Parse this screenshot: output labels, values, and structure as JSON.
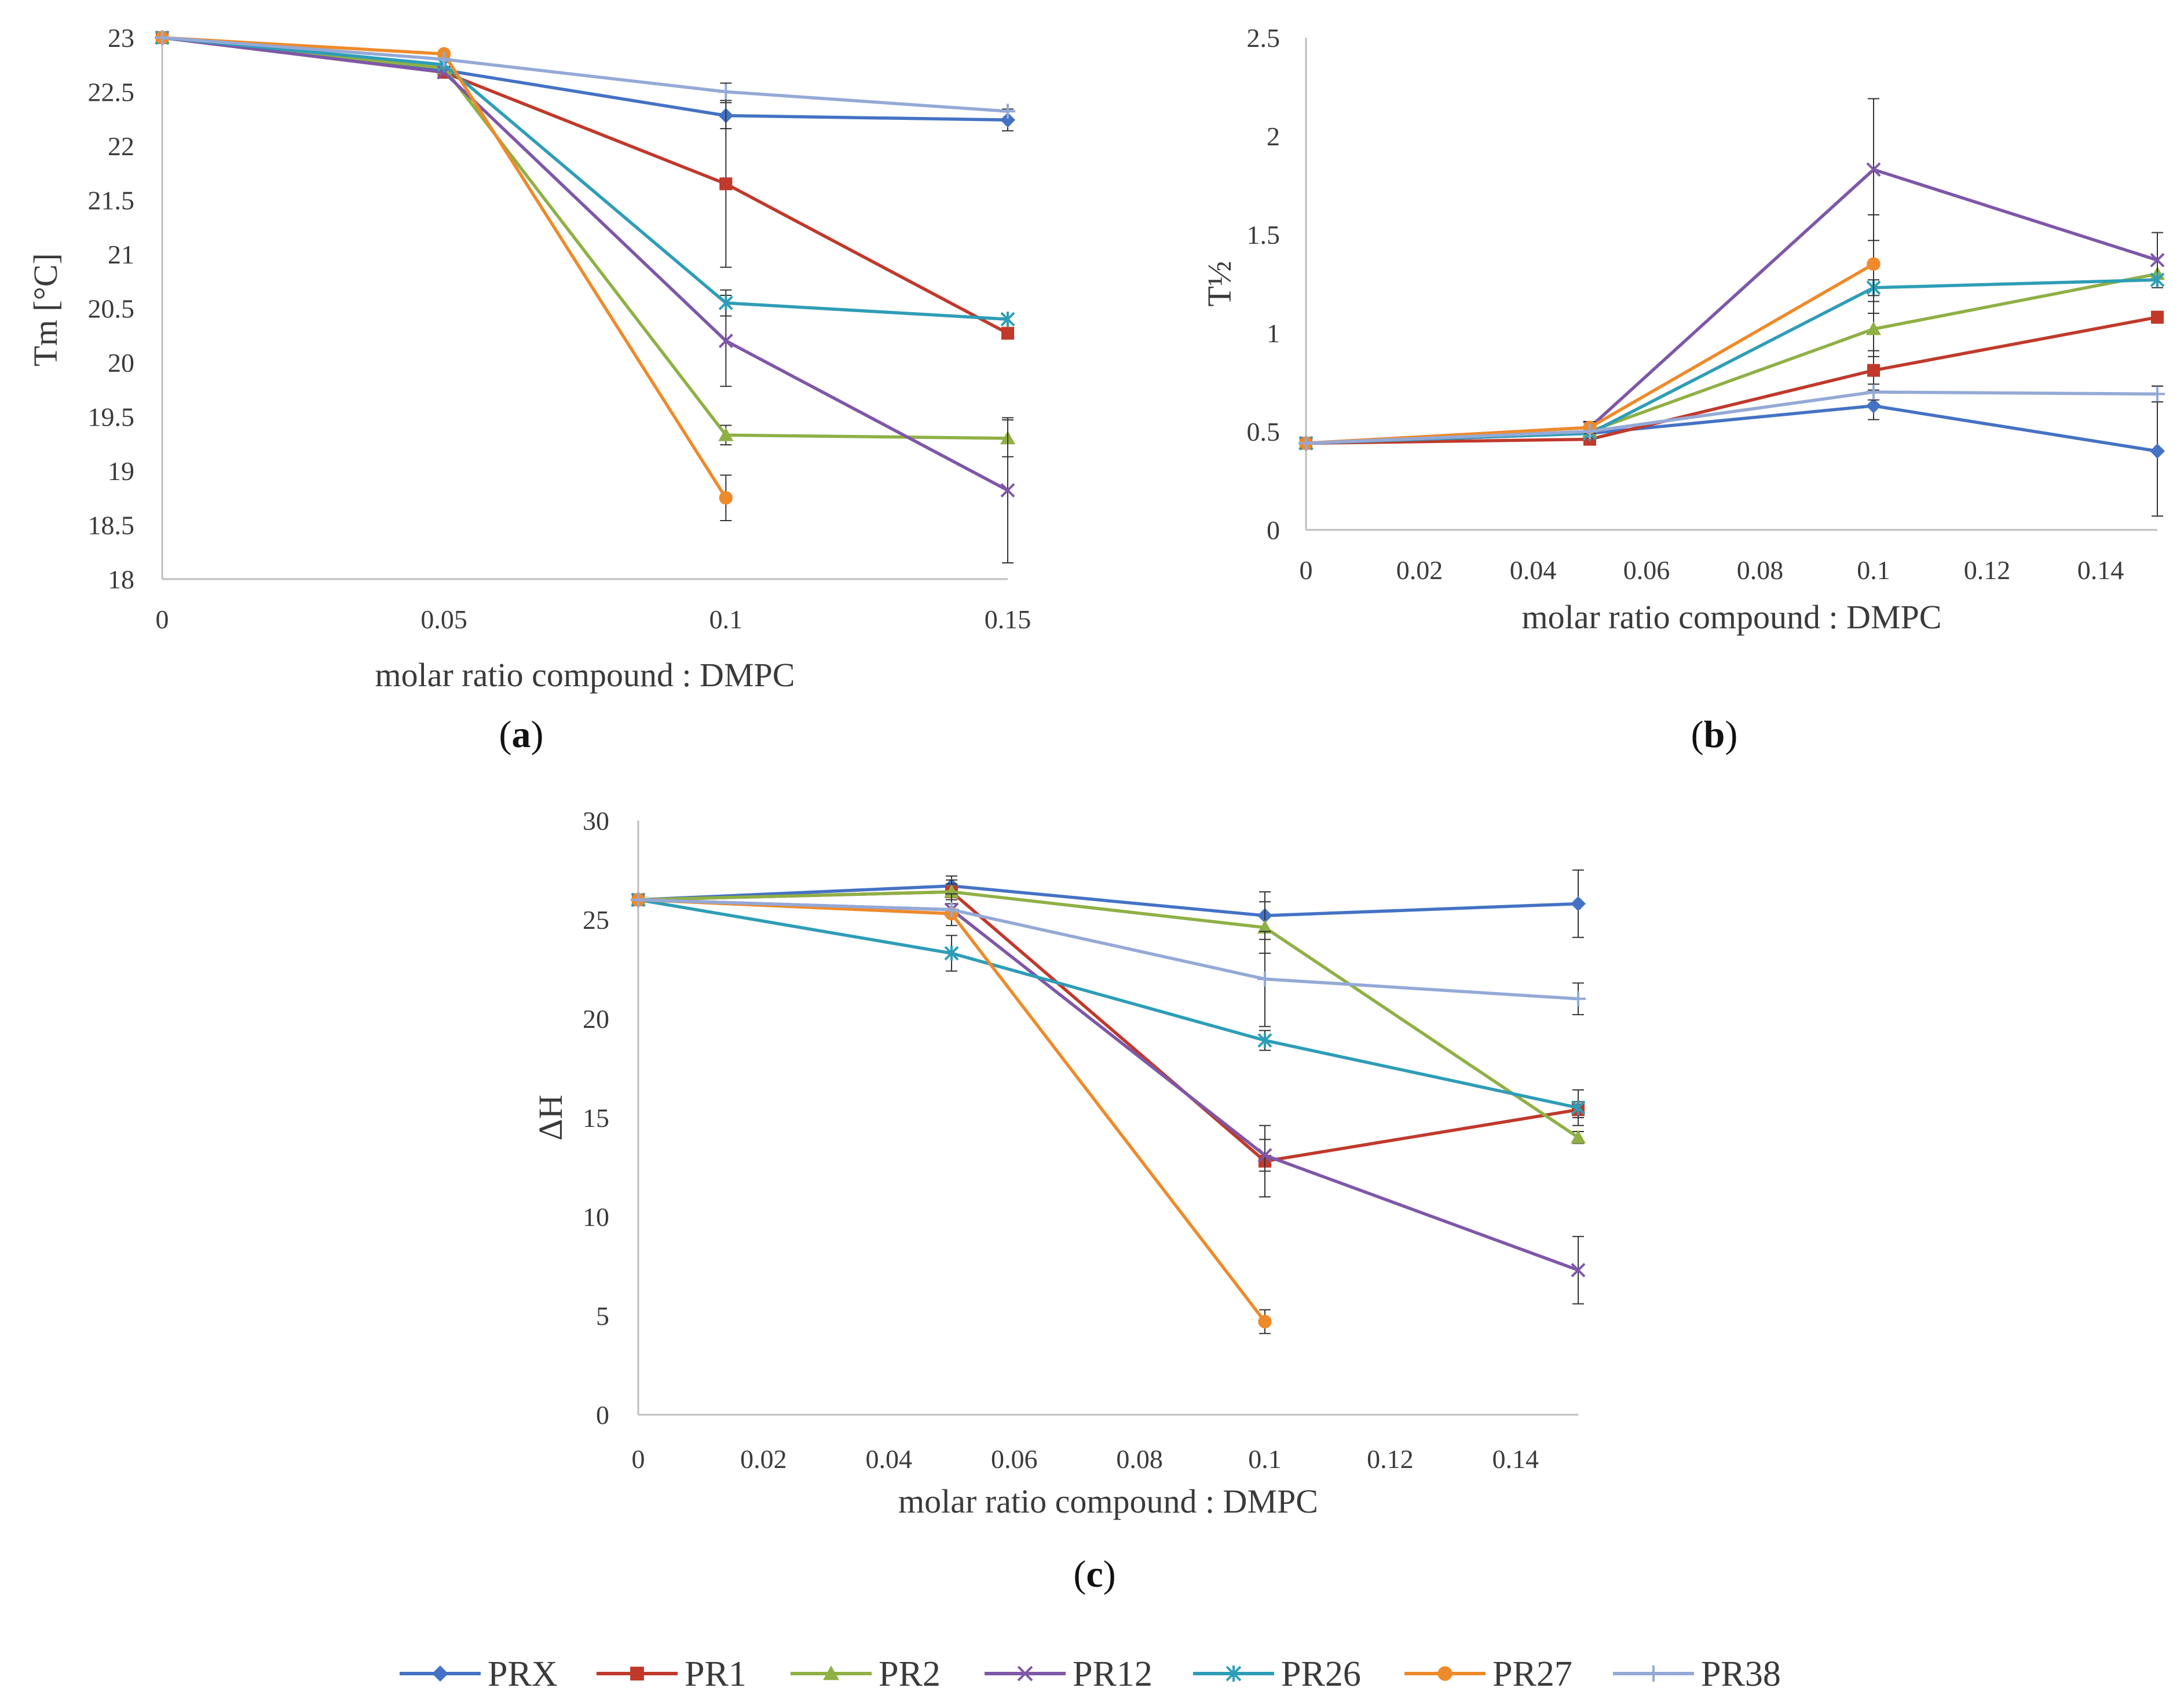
{
  "colors": {
    "PRX": "#4472c4",
    "PR1": "#c0392b",
    "PR2": "#8fb045",
    "PR12": "#7e57a8",
    "PR26": "#2e9db7",
    "PR27": "#ee8a2a",
    "PR38": "#94a9d6"
  },
  "legend": [
    {
      "name": "PRX",
      "marker": "diamond"
    },
    {
      "name": "PR1",
      "marker": "square"
    },
    {
      "name": "PR2",
      "marker": "triangle"
    },
    {
      "name": "PR12",
      "marker": "x"
    },
    {
      "name": "PR26",
      "marker": "star"
    },
    {
      "name": "PR27",
      "marker": "circle"
    },
    {
      "name": "PR38",
      "marker": "plus"
    }
  ],
  "chart_data": [
    {
      "id": "a",
      "panel_label": "a",
      "type": "line",
      "xlabel": "molar ratio compound : DMPC",
      "ylabel": "Tm [°C]",
      "categorical_x": true,
      "x": [
        0,
        0.05,
        0.1,
        0.15
      ],
      "x_tick_labels": [
        "0",
        "0.05",
        "0.1",
        "0.15"
      ],
      "y_tick_labels": [
        "18",
        "18.5",
        "19",
        "19.5",
        "20",
        "20.5",
        "21",
        "21.5",
        "22",
        "22.5",
        "23"
      ],
      "ylim": [
        18,
        23
      ],
      "y_ticks": [
        18,
        18.5,
        19,
        19.5,
        20,
        20.5,
        21,
        21.5,
        22,
        22.5,
        23
      ],
      "series": [
        {
          "name": "PRX",
          "values": [
            23,
            22.7,
            22.28,
            22.24
          ],
          "errors": [
            0,
            0,
            0.12,
            0.1
          ]
        },
        {
          "name": "PR1",
          "values": [
            23,
            22.68,
            21.65,
            20.27
          ],
          "errors": [
            0,
            0,
            0.77,
            0
          ]
        },
        {
          "name": "PR2",
          "values": [
            23,
            22.72,
            19.33,
            19.3
          ],
          "errors": [
            0,
            0,
            0.09,
            0.17
          ]
        },
        {
          "name": "PR12",
          "values": [
            23,
            22.68,
            20.2,
            18.82
          ],
          "errors": [
            0,
            0,
            0.42,
            0.67
          ]
        },
        {
          "name": "PR26",
          "values": [
            23,
            22.75,
            20.55,
            20.4
          ],
          "errors": [
            0,
            0,
            0.12,
            0
          ]
        },
        {
          "name": "PR27",
          "values": [
            23,
            22.85,
            18.75,
            null
          ],
          "errors": [
            0,
            0,
            0.21,
            0
          ]
        },
        {
          "name": "PR38",
          "values": [
            23,
            22.8,
            22.5,
            22.32
          ],
          "errors": [
            0,
            0,
            0.08,
            0
          ]
        }
      ]
    },
    {
      "id": "b",
      "panel_label": "b",
      "type": "scatter",
      "xlabel": "molar ratio compound : DMPC",
      "ylabel": "T½",
      "xlim": [
        0,
        0.15
      ],
      "x_ticks": [
        0,
        0.02,
        0.04,
        0.06,
        0.08,
        0.1,
        0.12,
        0.14
      ],
      "x_tick_labels": [
        "0",
        "0.02",
        "0.04",
        "0.06",
        "0.08",
        "0.1",
        "0.12",
        "0.14"
      ],
      "ylim": [
        0,
        2.5
      ],
      "y_ticks": [
        0,
        0.5,
        1,
        1.5,
        2,
        2.5
      ],
      "y_tick_labels": [
        "0",
        "0.5",
        "1",
        "1.5",
        "2",
        "2.5"
      ],
      "x": [
        0,
        0.05,
        0.1,
        0.15
      ],
      "series": [
        {
          "name": "PRX",
          "values": [
            0.44,
            0.49,
            0.63,
            0.4
          ],
          "errors": [
            0,
            0,
            0.07,
            0.33
          ]
        },
        {
          "name": "PR1",
          "values": [
            0.44,
            0.46,
            0.81,
            1.08
          ],
          "errors": [
            0,
            0,
            0.1,
            0.03
          ]
        },
        {
          "name": "PR2",
          "values": [
            0.44,
            0.5,
            1.02,
            1.3
          ],
          "errors": [
            0,
            0.03,
            0.14,
            0
          ]
        },
        {
          "name": "PR12",
          "values": [
            0.44,
            0.52,
            1.83,
            1.37
          ],
          "errors": [
            0,
            0,
            0.36,
            0.14
          ]
        },
        {
          "name": "PR26",
          "values": [
            0.44,
            0.49,
            1.23,
            1.27
          ],
          "errors": [
            0,
            0,
            0.04,
            0
          ]
        },
        {
          "name": "PR27",
          "values": [
            0.44,
            0.52,
            1.35,
            null
          ],
          "errors": [
            0,
            0.03,
            0.25,
            0
          ]
        },
        {
          "name": "PR38",
          "values": [
            0.44,
            0.5,
            0.7,
            0.69
          ],
          "errors": [
            0,
            0,
            0.04,
            0.04
          ]
        }
      ]
    },
    {
      "id": "c",
      "panel_label": "c",
      "type": "scatter",
      "xlabel": "molar ratio compound : DMPC",
      "ylabel": "ΔH",
      "xlim": [
        0,
        0.15
      ],
      "x_ticks": [
        0,
        0.02,
        0.04,
        0.06,
        0.08,
        0.1,
        0.12,
        0.14
      ],
      "x_tick_labels": [
        "0",
        "0.02",
        "0.04",
        "0.06",
        "0.08",
        "0.1",
        "0.12",
        "0.14"
      ],
      "ylim": [
        0,
        30
      ],
      "y_ticks": [
        0,
        5,
        10,
        15,
        20,
        25,
        30
      ],
      "y_tick_labels": [
        "0",
        "5",
        "10",
        "15",
        "20",
        "25",
        "30"
      ],
      "x": [
        0,
        0.05,
        0.1,
        0.15
      ],
      "series": [
        {
          "name": "PRX",
          "values": [
            26,
            26.7,
            25.2,
            25.8
          ],
          "errors": [
            0,
            0.5,
            1.2,
            1.7
          ]
        },
        {
          "name": "PR1",
          "values": [
            26,
            26.4,
            12.8,
            15.4
          ],
          "errors": [
            0,
            0.6,
            1.8,
            0.4
          ]
        },
        {
          "name": "PR2",
          "values": [
            26,
            26.4,
            24.6,
            14
          ],
          "errors": [
            0,
            0.4,
            1.3,
            0.3
          ]
        },
        {
          "name": "PR12",
          "values": [
            26,
            25.5,
            13.1,
            7.3
          ],
          "errors": [
            0,
            0.8,
            0.8,
            1.7
          ]
        },
        {
          "name": "PR26",
          "values": [
            26,
            23.3,
            18.9,
            15.5
          ],
          "errors": [
            0,
            0.9,
            0.5,
            0.9
          ]
        },
        {
          "name": "PR27",
          "values": [
            26,
            25.3,
            4.7,
            null
          ],
          "errors": [
            0,
            0,
            0.6,
            0
          ]
        },
        {
          "name": "PR38",
          "values": [
            26,
            25.5,
            22,
            21
          ],
          "errors": [
            0,
            0,
            2.4,
            0.8
          ]
        }
      ]
    }
  ]
}
